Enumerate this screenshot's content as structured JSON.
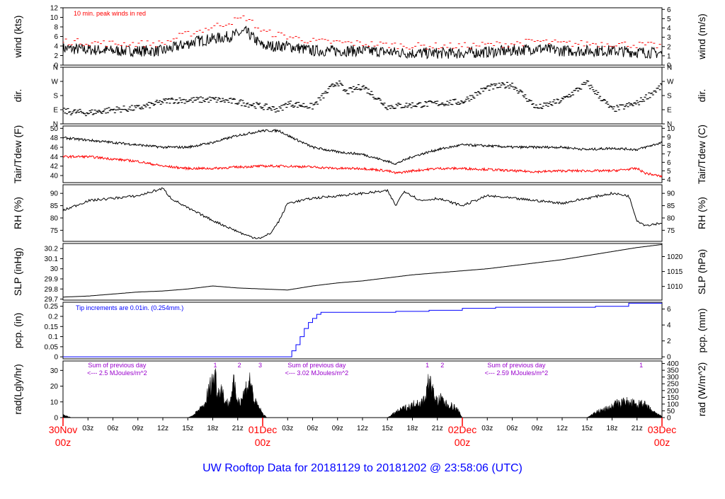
{
  "title": "UW Rooftop Data for 20181129  to  20181202 @ 23:58:06  (UTC)",
  "colors": {
    "data": "#000000",
    "peak": "#ff0000",
    "dew": "#ff0000",
    "precip": "#0000ff",
    "purple": "#9900cc",
    "red_label": "#ff0000",
    "title": "#0000ff"
  },
  "time_axis": {
    "hour_ticks": [
      "03z",
      "06z",
      "09z",
      "12z",
      "15z",
      "18z",
      "21z",
      "03z",
      "06z",
      "09z",
      "12z",
      "15z",
      "18z",
      "21z",
      "03z",
      "06z",
      "09z",
      "12z",
      "15z",
      "18z",
      "21z"
    ],
    "day_labels": [
      {
        "day": "30Nov",
        "hour": "00z"
      },
      {
        "day": "01Dec",
        "hour": "00z"
      },
      {
        "day": "02Dec",
        "hour": "00z"
      },
      {
        "day": "03Dec",
        "hour": "00z"
      }
    ],
    "range_hours": [
      0,
      72
    ]
  },
  "chart_data": [
    {
      "type": "line",
      "ylabel_left": "wind (kts)",
      "ylabel_right": "wind (m/s)",
      "annotation": "10 min. peak winds in red",
      "ylim": [
        0,
        12
      ],
      "yticks_left": [
        0,
        2,
        4,
        6,
        8,
        10,
        12
      ],
      "yticks_right": [
        0,
        1,
        2,
        3,
        4,
        5,
        6
      ],
      "series": [
        {
          "x": [
            0,
            6,
            12,
            14,
            16,
            18,
            20,
            22,
            24,
            27,
            30,
            36,
            42,
            48,
            54,
            57,
            60,
            66,
            72
          ],
          "y": [
            3.5,
            3,
            3,
            4,
            5,
            5.5,
            6,
            7,
            4,
            4,
            3,
            3,
            2.5,
            2.5,
            3,
            3.5,
            3,
            3,
            2.5
          ]
        },
        {
          "x": [
            0,
            6,
            12,
            14,
            16,
            18,
            20,
            22,
            24,
            27,
            30,
            36,
            42,
            48,
            54,
            57,
            60,
            66,
            72
          ],
          "y": [
            5,
            4.5,
            4.5,
            6,
            7,
            8,
            9,
            10,
            7,
            6,
            5,
            4.5,
            4,
            4,
            4.5,
            5,
            4.5,
            4.5,
            4
          ]
        }
      ]
    },
    {
      "type": "scatter",
      "ylabel_left": "dir.",
      "ylabel_right": "dir.",
      "ytick_labels": [
        "N",
        "W",
        "S",
        "E",
        "N"
      ],
      "ylim": [
        0,
        360
      ],
      "x": [
        0,
        3,
        6,
        9,
        12,
        13,
        15,
        18,
        21,
        24,
        26,
        27,
        30,
        33,
        34,
        36,
        39,
        42,
        45,
        48,
        51,
        54,
        57,
        60,
        63,
        66,
        69,
        72
      ],
      "y": [
        80,
        70,
        90,
        100,
        140,
        150,
        150,
        155,
        140,
        110,
        90,
        130,
        110,
        270,
        200,
        240,
        110,
        120,
        130,
        140,
        230,
        250,
        100,
        150,
        260,
        90,
        130,
        240
      ]
    },
    {
      "type": "line",
      "ylabel_left": "Tair/Tdew (F)",
      "ylabel_right": "Tair/Tdew (C)",
      "ylim": [
        38.5,
        50.5
      ],
      "yticks_left": [
        40,
        42,
        44,
        46,
        48,
        50
      ],
      "yticks_right": [
        4,
        5,
        6,
        7,
        8,
        9,
        10
      ],
      "series": [
        {
          "x": [
            0,
            3,
            6,
            9,
            12,
            15,
            18,
            21,
            24,
            26,
            27,
            30,
            33,
            36,
            39,
            40,
            42,
            45,
            48,
            51,
            54,
            57,
            60,
            63,
            66,
            69,
            72
          ],
          "y": [
            48,
            47.5,
            47,
            46.5,
            46,
            46,
            47,
            48.5,
            49.5,
            49.5,
            48.5,
            46,
            45,
            44.5,
            43,
            42.5,
            44,
            45.5,
            46.5,
            46.3,
            46,
            46,
            46,
            45.5,
            45.8,
            45.5,
            47
          ]
        },
        {
          "x": [
            0,
            3,
            6,
            9,
            12,
            15,
            18,
            21,
            24,
            27,
            30,
            33,
            36,
            39,
            40,
            42,
            45,
            48,
            51,
            54,
            57,
            60,
            63,
            66,
            69,
            70,
            72
          ],
          "y": [
            44,
            44,
            43.5,
            43,
            42,
            41.5,
            41.5,
            41.8,
            42,
            42,
            41.8,
            41.5,
            41.5,
            41,
            40.5,
            41,
            41.5,
            41.5,
            41.3,
            41,
            40.8,
            41,
            41,
            41,
            41.5,
            40.5,
            39.8
          ]
        }
      ]
    },
    {
      "type": "line",
      "ylabel_left": "RH (%)",
      "ylabel_right": "RH (%)",
      "ylim": [
        70.5,
        93.5
      ],
      "yticks": [
        75,
        80,
        85,
        90
      ],
      "x": [
        0,
        3,
        6,
        9,
        11,
        12,
        13,
        15,
        18,
        20,
        22,
        23,
        24,
        25,
        26,
        27,
        30,
        33,
        36,
        39,
        40,
        41,
        43,
        45,
        48,
        51,
        54,
        57,
        60,
        63,
        66,
        68,
        69,
        70,
        72
      ],
      "y": [
        83,
        87,
        88,
        89,
        91,
        92,
        88,
        84,
        79,
        76,
        73,
        72,
        72,
        74,
        79,
        86,
        88,
        89,
        90,
        91,
        85,
        91,
        87,
        88,
        85,
        89,
        88,
        87,
        86,
        88,
        90,
        89,
        79,
        77,
        78
      ]
    },
    {
      "type": "line",
      "ylabel_left": "SLP (inHg)",
      "ylabel_right": "SLP (hPa)",
      "ylim": [
        29.69,
        30.25
      ],
      "yticks_left": [
        29.7,
        29.8,
        29.9,
        30,
        30.1,
        30.2
      ],
      "yticks_right": [
        1010,
        1015,
        1020,
        1025
      ],
      "x": [
        0,
        3,
        6,
        9,
        12,
        15,
        18,
        21,
        24,
        27,
        30,
        33,
        36,
        39,
        42,
        45,
        48,
        51,
        54,
        57,
        60,
        63,
        66,
        69,
        72
      ],
      "y": [
        29.72,
        29.73,
        29.75,
        29.77,
        29.78,
        29.8,
        29.83,
        29.81,
        29.8,
        29.79,
        29.83,
        29.86,
        29.88,
        29.91,
        29.94,
        29.96,
        29.98,
        30.0,
        30.03,
        30.06,
        30.09,
        30.13,
        30.17,
        30.21,
        30.24
      ]
    },
    {
      "type": "line",
      "ylabel_left": "pcp. (in)",
      "ylabel_right": "pcp. (mm)",
      "annotation": "Tip increments are 0.01in. (0.254mm.)",
      "ylim": [
        -0.01,
        0.27
      ],
      "yticks_left": [
        0,
        0.05,
        0.1,
        0.15,
        0.2,
        0.25
      ],
      "yticks_right": [
        0,
        2,
        4,
        6
      ],
      "x": [
        0,
        27,
        27.5,
        28,
        28.5,
        29,
        29.5,
        30,
        30.5,
        31,
        32,
        36,
        40,
        44,
        48,
        50,
        52,
        56,
        60,
        64,
        66,
        68,
        72
      ],
      "y": [
        0,
        0,
        0.03,
        0.06,
        0.1,
        0.14,
        0.17,
        0.19,
        0.21,
        0.22,
        0.22,
        0.22,
        0.225,
        0.23,
        0.24,
        0.24,
        0.245,
        0.245,
        0.245,
        0.25,
        0.25,
        0.265,
        0.265
      ]
    },
    {
      "type": "area",
      "ylabel_left": "rad(Lgly/hr)",
      "ylabel_right": "rad (W/m^2)",
      "ylim": [
        0,
        36
      ],
      "yticks_left": [
        0,
        10,
        20,
        30
      ],
      "yticks_right": [
        0,
        50,
        100,
        150,
        200,
        250,
        300,
        350,
        400
      ],
      "annotations": [
        {
          "text": "Sum of previous day",
          "hour": 6.5
        },
        {
          "text": "<--- 2.5 MJoules/m^2",
          "hour": 6.5
        },
        {
          "text": "Sum of previous day",
          "hour": 30.5
        },
        {
          "text": "<--- 3.02 MJoules/m^2",
          "hour": 30.5
        },
        {
          "text": "Sum of previous day",
          "hour": 54.5
        },
        {
          "text": "<--- 2.59 MJoules/m^2",
          "hour": 54.5
        },
        {
          "text": "1",
          "hour": 18.3
        },
        {
          "text": "2",
          "hour": 21.2
        },
        {
          "text": "3",
          "hour": 23.7
        },
        {
          "text": "1",
          "hour": 43.8
        },
        {
          "text": "2",
          "hour": 45.6
        },
        {
          "text": "1",
          "hour": 69.5
        }
      ],
      "x": [
        0,
        0.5,
        1,
        15,
        15.5,
        16,
        17,
        17.5,
        18,
        18.3,
        18.6,
        19,
        19.5,
        20,
        20.5,
        21,
        21.5,
        22,
        22.5,
        23,
        23.5,
        24,
        24.5,
        39,
        39.5,
        40,
        41,
        42,
        42.5,
        43,
        43.5,
        44,
        44.5,
        45,
        45.5,
        46,
        47,
        47.5,
        48,
        63,
        63.5,
        64,
        65,
        66,
        66.5,
        67,
        67.5,
        68,
        68.5,
        69,
        69.5,
        70,
        71,
        72
      ],
      "y": [
        2,
        1,
        0,
        0,
        1,
        4,
        9,
        20,
        28,
        32,
        18,
        22,
        12,
        10,
        25,
        12,
        14,
        22,
        28,
        12,
        8,
        3,
        0,
        0,
        2,
        4,
        7,
        9,
        12,
        10,
        15,
        28,
        18,
        12,
        14,
        10,
        8,
        5,
        0,
        0,
        2,
        4,
        6,
        8,
        11,
        9,
        14,
        10,
        11,
        8,
        12,
        9,
        4,
        1
      ]
    }
  ]
}
